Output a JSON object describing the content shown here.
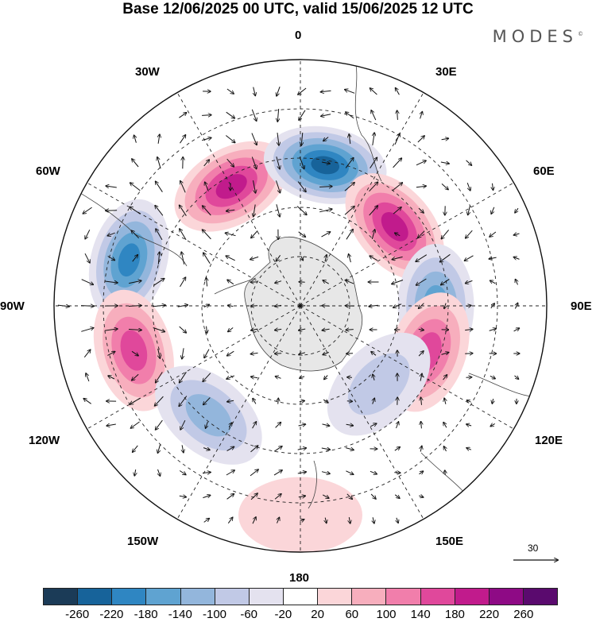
{
  "title": "Base 12/06/2025 00 UTC, valid 15/06/2025 12 UTC",
  "brand": "MODES",
  "brand_mark": "©",
  "longitude_labels": {
    "lon_0": "0",
    "lon_30e": "30E",
    "lon_60e": "60E",
    "lon_90e": "90E",
    "lon_120e": "120E",
    "lon_150e": "150E",
    "lon_180": "180",
    "lon_150w": "150W",
    "lon_120w": "120W",
    "lon_90w": "90W",
    "lon_60w": "60W",
    "lon_30w": "30W"
  },
  "reference_vector_label": "30",
  "colorbar": {
    "colors": [
      "#1b3b57",
      "#17639a",
      "#2f86c2",
      "#5fa3d1",
      "#93b6dc",
      "#c1c9e6",
      "#e4e2ef",
      "#ffffff",
      "#fbd6d9",
      "#f7aebd",
      "#f17eab",
      "#e0489b",
      "#c11b8c",
      "#8e0a85",
      "#5a0a6e"
    ],
    "tick_labels": [
      "-260",
      "-220",
      "-180",
      "-140",
      "-100",
      "-60",
      "-20",
      "20",
      "60",
      "100",
      "140",
      "180",
      "220",
      "260"
    ]
  },
  "map": {
    "projection": "south-polar-stereographic",
    "anomalies": [
      {
        "name": "anomaly-positive-30w",
        "lon": -30,
        "colat": 0.56,
        "value": 200
      },
      {
        "name": "anomaly-negative-10e",
        "lon": 10,
        "colat": 0.58,
        "value": -230
      },
      {
        "name": "anomaly-positive-50e",
        "lon": 50,
        "colat": 0.5,
        "value": 200
      },
      {
        "name": "anomaly-negative-90e",
        "lon": 90,
        "colat": 0.55,
        "value": -170
      },
      {
        "name": "anomaly-positive-110e",
        "lon": 110,
        "colat": 0.55,
        "value": 150
      },
      {
        "name": "anomaly-negative-135e",
        "lon": 135,
        "colat": 0.45,
        "value": -100
      },
      {
        "name": "anomaly-negative-75w",
        "lon": -75,
        "colat": 0.72,
        "value": -210
      },
      {
        "name": "anomaly-positive-105w",
        "lon": -105,
        "colat": 0.7,
        "value": 180
      },
      {
        "name": "anomaly-negative-140w",
        "lon": -140,
        "colat": 0.58,
        "value": -110
      },
      {
        "name": "anomaly-positive-180",
        "lon": 180,
        "colat": 0.85,
        "value": 60
      }
    ]
  }
}
